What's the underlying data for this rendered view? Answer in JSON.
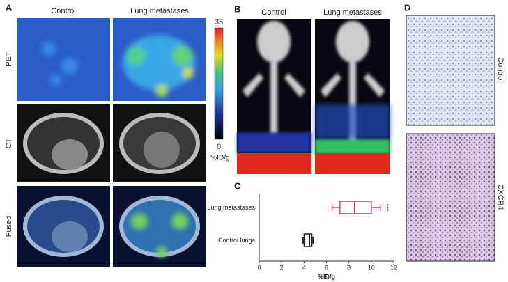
{
  "panels": {
    "A": "A",
    "B": "B",
    "C": "C",
    "D": "D"
  },
  "panel_a": {
    "columns": [
      "Control",
      "Lung metastases"
    ],
    "rows": [
      "PET",
      "CT",
      "Fused"
    ],
    "colorbar": {
      "max": "35",
      "min": "0",
      "unit": "%ID/g"
    }
  },
  "panel_b": {
    "columns": [
      "Control",
      "Lung metastases"
    ]
  },
  "panel_d": {
    "rows": [
      "Control",
      "CXCR4"
    ]
  },
  "chart_data": {
    "type": "box",
    "xlabel": "%ID/g",
    "xlim": [
      0,
      12
    ],
    "xticks": [
      0,
      2,
      4,
      6,
      8,
      10,
      12
    ],
    "annotation": "***",
    "series": [
      {
        "name": "Lung metastases",
        "color": "#d6386b",
        "min": 6.5,
        "q1": 7.2,
        "median": 8.5,
        "q3": 10,
        "max": 10.8
      },
      {
        "name": "Control lungs",
        "color": "#222222",
        "min": 3.9,
        "q1": 4.0,
        "median": 4.5,
        "q3": 4.7,
        "max": 4.8
      }
    ]
  }
}
